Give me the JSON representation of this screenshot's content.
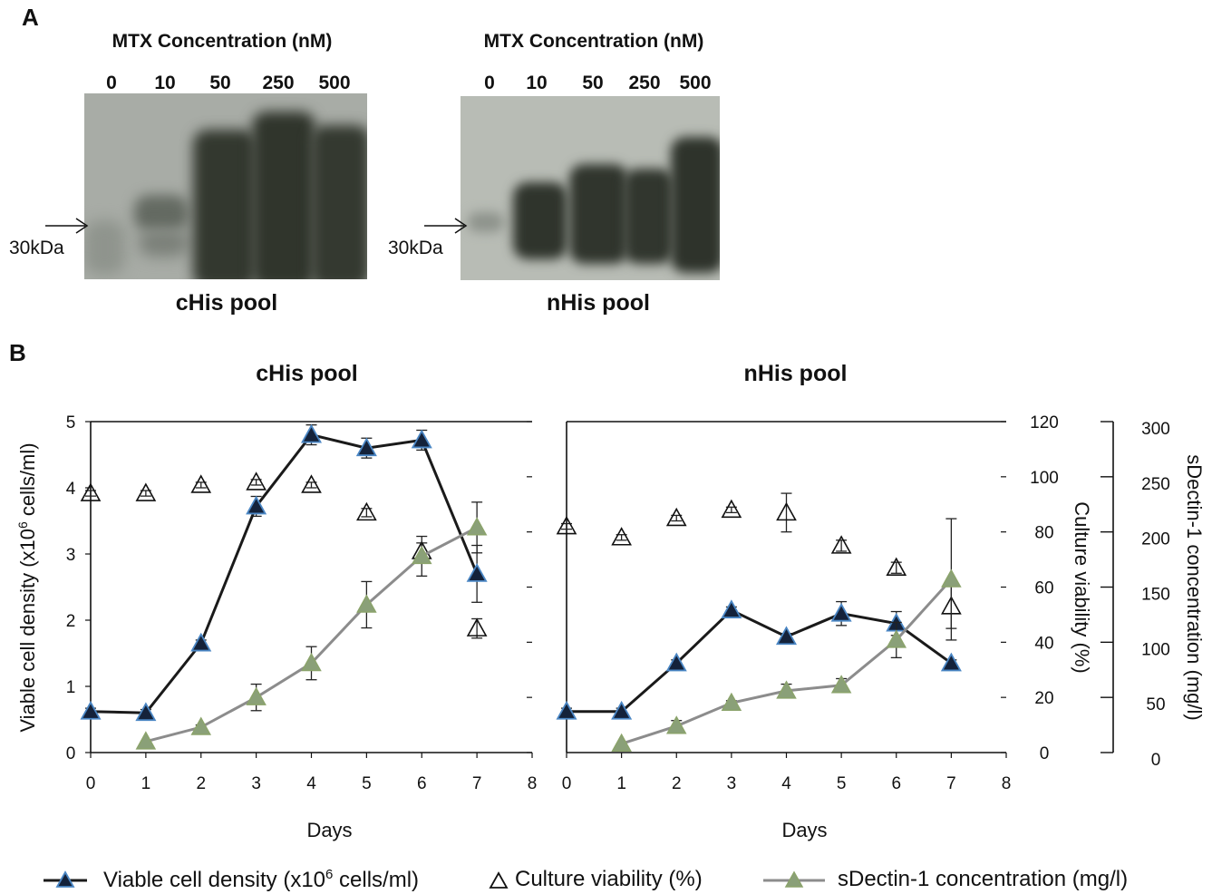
{
  "panel_a": {
    "letter": "A",
    "left_gel": {
      "title": "MTX Concentration (nM)",
      "lanes": [
        "0",
        "10",
        "50",
        "250",
        "500"
      ],
      "marker": "30kDa",
      "caption": "cHis pool"
    },
    "right_gel": {
      "title": "MTX Concentration (nM)",
      "lanes": [
        "0",
        "10",
        "50",
        "250",
        "500"
      ],
      "marker": "30kDa",
      "caption": "nHis pool"
    }
  },
  "panel_b": {
    "letter": "B",
    "legend": {
      "density": "Viable cell density (x10",
      "density_sup": "6",
      "density_tail": " cells/ml)",
      "viability": "Culture viability (%)",
      "conc": "sDectin-1 concentration (mg/l)"
    }
  },
  "chart_data": [
    {
      "type": "line",
      "title": "cHis pool",
      "xlabel": "Days",
      "ylabel": "Viable cell density (x10",
      "ylabel_sup": "6",
      "ylabel_tail": " cells/ml)",
      "xlim": [
        0,
        8
      ],
      "ylim": [
        0,
        5
      ],
      "xticks": [
        "0",
        "1",
        "2",
        "3",
        "4",
        "5",
        "6",
        "7",
        "8"
      ],
      "yticks": [
        "0",
        "1",
        "2",
        "3",
        "4",
        "5"
      ],
      "series": [
        {
          "name": "Viable cell density (x10^6 cells/ml)",
          "axis": "left",
          "style": "dark-line-filled-triangle",
          "x": [
            0,
            1,
            2,
            3,
            4,
            5,
            6,
            7
          ],
          "y": [
            0.62,
            0.6,
            1.65,
            3.72,
            4.8,
            4.6,
            4.72,
            2.7
          ],
          "err": [
            0.05,
            0.05,
            0.05,
            0.15,
            0.15,
            0.15,
            0.15,
            0.43
          ]
        },
        {
          "name": "Culture viability (%)",
          "axis": "mid",
          "style": "open-triangle",
          "x": [
            0,
            1,
            2,
            3,
            4,
            5,
            6,
            7
          ],
          "y": [
            94,
            94,
            97,
            98,
            97,
            87,
            73,
            45
          ],
          "err": [
            1,
            1,
            1,
            1,
            1,
            1.5,
            3,
            3.5
          ]
        },
        {
          "name": "sDectin-1 concentration (mg/l)",
          "axis": "right",
          "style": "gray-line-green-triangle",
          "x": [
            1,
            2,
            3,
            4,
            5,
            6,
            7
          ],
          "y": [
            10,
            23,
            50,
            81,
            134,
            178,
            204
          ],
          "err": [
            0,
            2,
            12,
            15,
            21,
            18,
            23
          ]
        }
      ]
    },
    {
      "type": "line",
      "title": "nHis pool",
      "xlabel": "Days",
      "xlim": [
        0,
        8
      ],
      "xticks": [
        "0",
        "1",
        "2",
        "3",
        "4",
        "5",
        "6",
        "7",
        "8"
      ],
      "y2label": "Culture viability (%)",
      "y2lim": [
        0,
        120
      ],
      "y2ticks": [
        "0",
        "20",
        "40",
        "60",
        "80",
        "100",
        "120"
      ],
      "y3label": "sDectin-1 concentration (mg/l)",
      "y3lim": [
        0,
        300
      ],
      "y3ticks": [
        "0",
        "50",
        "100",
        "150",
        "200",
        "250",
        "300"
      ],
      "series": [
        {
          "name": "Viable cell density (x10^6 cells/ml)",
          "axis": "left",
          "style": "dark-line-filled-triangle",
          "x": [
            0,
            1,
            2,
            3,
            4,
            5,
            6,
            7
          ],
          "y": [
            0.62,
            0.62,
            1.35,
            2.15,
            1.75,
            2.1,
            1.95,
            1.35
          ],
          "err": [
            0.05,
            0.05,
            0.05,
            0.05,
            0.05,
            0.18,
            0.18,
            0.05
          ]
        },
        {
          "name": "Culture viability (%)",
          "axis": "mid",
          "style": "open-triangle",
          "x": [
            0,
            1,
            2,
            3,
            4,
            5,
            6,
            7
          ],
          "y": [
            82,
            78,
            85,
            88,
            87,
            75,
            67,
            53
          ],
          "err": [
            1,
            1,
            1,
            1,
            7,
            2,
            2,
            8
          ]
        },
        {
          "name": "sDectin-1 concentration (mg/l)",
          "axis": "right",
          "style": "gray-line-green-triangle",
          "x": [
            1,
            2,
            3,
            4,
            5,
            6,
            7
          ],
          "y": [
            8,
            24,
            45,
            56,
            61,
            102,
            157
          ],
          "err": [
            0,
            5,
            2,
            6,
            6,
            16,
            55
          ]
        }
      ]
    }
  ]
}
